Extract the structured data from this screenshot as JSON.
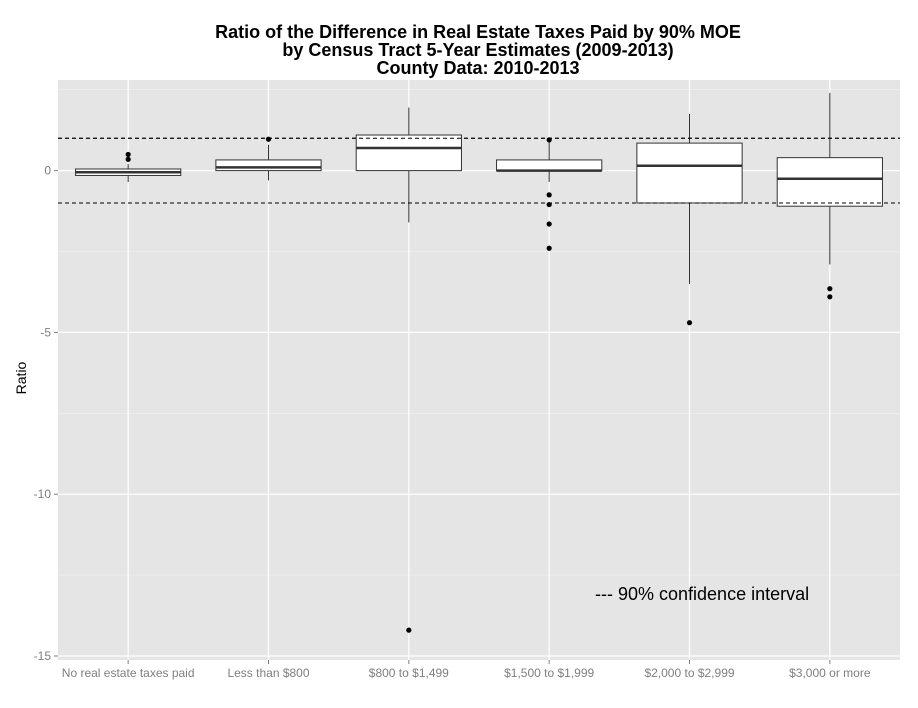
{
  "chart_data": {
    "type": "box",
    "title_lines": [
      "Ratio of the Difference in Real Estate Taxes Paid by 90% MOE",
      "by Census Tract 5-Year Estimates (2009-2013)",
      "County Data: 2010-2013"
    ],
    "xlabel": "",
    "ylabel": "Ratio",
    "ylim": [
      -15,
      2.8
    ],
    "y_ticks": [
      {
        "value": 0,
        "label": "0"
      },
      {
        "value": -5,
        "label": "-5"
      },
      {
        "value": -10,
        "label": "-10"
      },
      {
        "value": -15,
        "label": "-15"
      }
    ],
    "categories": [
      "No real estate taxes paid",
      "Less than $800",
      "$800 to $1,499",
      "$1,500 to $1,999",
      "$2,000 to $2,999",
      "$3,000 or more"
    ],
    "boxes": [
      {
        "min": -0.35,
        "q1": -0.15,
        "median": -0.05,
        "q3": 0.05,
        "max": 0.2,
        "outliers": [
          0.35,
          0.5
        ]
      },
      {
        "min": -0.3,
        "q1": 0.0,
        "median": 0.1,
        "q3": 0.33,
        "max": 0.8,
        "outliers": [
          0.97
        ]
      },
      {
        "min": -1.6,
        "q1": 0.0,
        "median": 0.7,
        "q3": 1.1,
        "max": 1.95,
        "outliers": [
          -14.2
        ]
      },
      {
        "min": -0.35,
        "q1": 0.0,
        "median": 0.0,
        "q3": 0.33,
        "max": 0.9,
        "outliers": [
          0.95,
          -0.75,
          -1.05,
          -1.65,
          -2.4
        ]
      },
      {
        "min": -3.5,
        "q1": -1.0,
        "median": 0.15,
        "q3": 0.85,
        "max": 1.75,
        "outliers": [
          -4.7
        ]
      },
      {
        "min": -2.9,
        "q1": -1.1,
        "median": -0.25,
        "q3": 0.4,
        "max": 2.4,
        "outliers": [
          -3.65,
          -3.9
        ]
      }
    ],
    "reference_lines": [
      1,
      -1
    ],
    "annotation": "--- 90% confidence interval",
    "grid": true
  }
}
